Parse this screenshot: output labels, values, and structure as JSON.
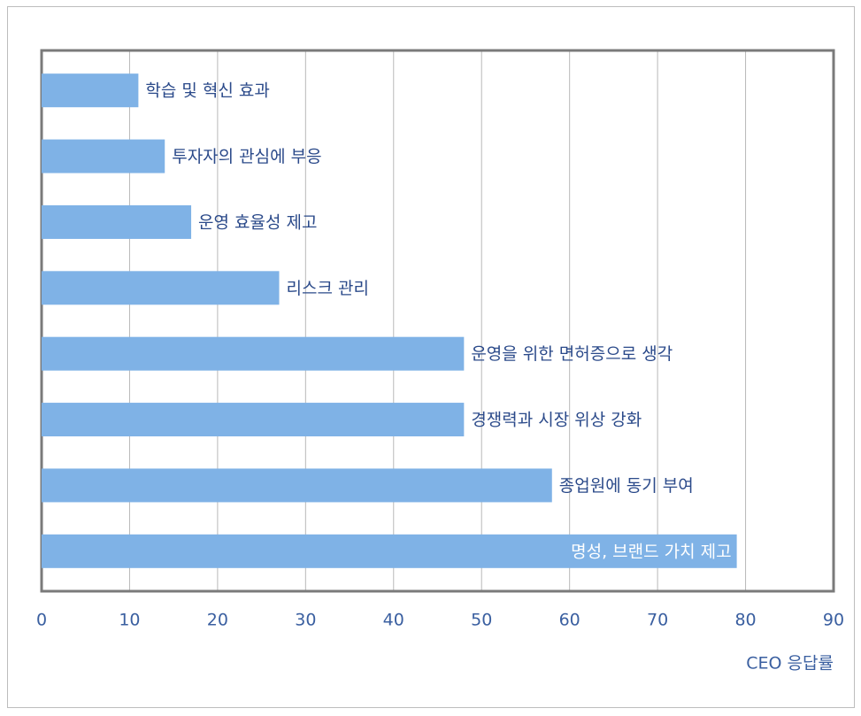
{
  "chart_data": {
    "type": "bar",
    "orientation": "horizontal",
    "categories": [
      "학습 및 혁신 효과",
      "투자자의 관심에 부응",
      "운영 효율성 제고",
      "리스크 관리",
      "운영을 위한 면허증으로 생각",
      "경쟁력과 시장 위상 강화",
      "종업원에 동기 부여",
      "명성, 브랜드 가치 제고"
    ],
    "values": [
      11,
      14,
      17,
      27,
      48,
      48,
      58,
      79
    ],
    "color": "#7fb2e6",
    "x_label": "CEO 응답률",
    "xlim": [
      0,
      90
    ],
    "xticks": [
      0,
      10,
      20,
      30,
      40,
      50,
      60,
      70,
      80,
      90
    ],
    "grid": true
  }
}
